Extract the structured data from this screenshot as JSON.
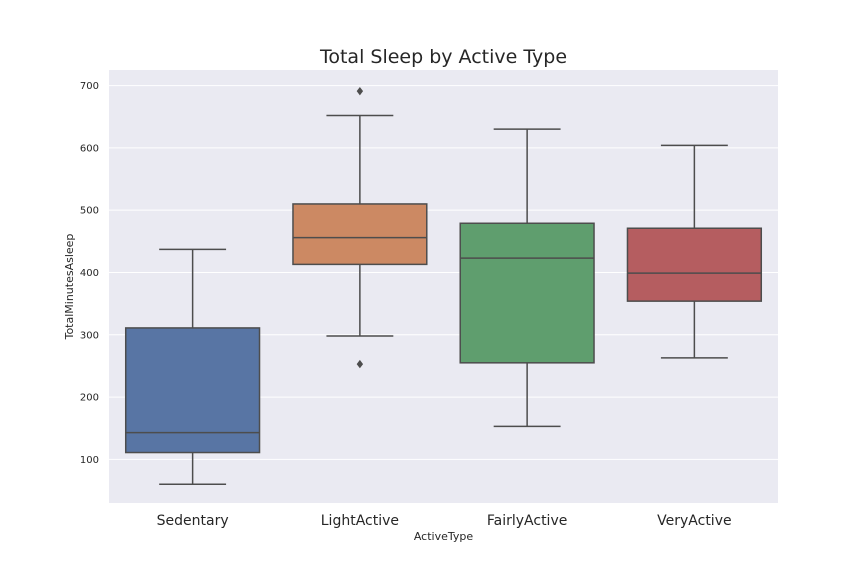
{
  "chart_data": {
    "type": "box",
    "title": "Total Sleep by Active Type",
    "xlabel": "ActiveType",
    "ylabel": "TotalMinutesAsleep",
    "ylim": [
      30,
      725
    ],
    "yticks": [
      100,
      200,
      300,
      400,
      500,
      600,
      700
    ],
    "grid": true,
    "background": "#eaeaf2",
    "grid_color": "#ffffff",
    "line_color": "#4d4d4d",
    "categories": [
      "Sedentary",
      "LightActive",
      "FairlyActive",
      "VeryActive"
    ],
    "boxes": [
      {
        "name": "Sedentary",
        "color": "#5875a4",
        "whisker_low": 60,
        "q1": 111,
        "median": 143,
        "q3": 311,
        "whisker_high": 437,
        "outliers": []
      },
      {
        "name": "LightActive",
        "color": "#cc8963",
        "whisker_low": 298,
        "q1": 413,
        "median": 456,
        "q3": 510,
        "whisker_high": 652,
        "outliers": [
          691,
          253
        ]
      },
      {
        "name": "FairlyActive",
        "color": "#5f9e6e",
        "whisker_low": 153,
        "q1": 255,
        "median": 423,
        "q3": 479,
        "whisker_high": 630,
        "outliers": []
      },
      {
        "name": "VeryActive",
        "color": "#b55d60",
        "whisker_low": 263,
        "q1": 354,
        "median": 399,
        "q3": 471,
        "whisker_high": 604,
        "outliers": []
      }
    ]
  }
}
